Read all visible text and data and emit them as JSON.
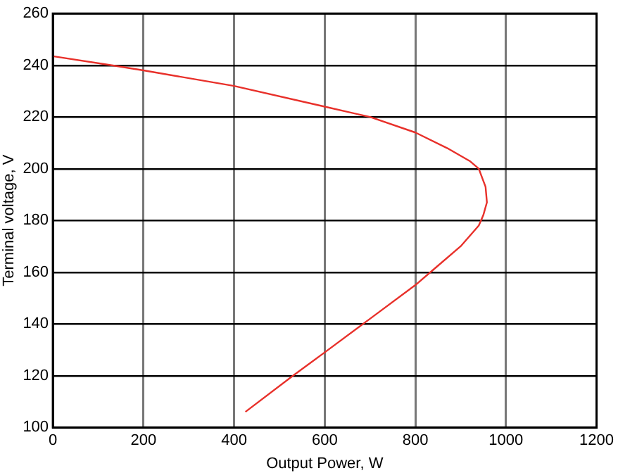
{
  "chart_data": {
    "type": "line",
    "xlabel": "Output Power, W",
    "ylabel": "Terminal voltage, V",
    "series": [
      {
        "color": "#e8302a",
        "x": [
          0,
          130,
          200,
          400,
          600,
          700,
          800,
          870,
          920,
          940,
          955,
          958,
          950,
          940,
          900,
          840,
          800,
          700,
          600,
          530,
          425
        ],
        "values": [
          243.5,
          240,
          238,
          232,
          224,
          220,
          214,
          208,
          203,
          200,
          193,
          187,
          182,
          178,
          170,
          161,
          155,
          142,
          129,
          120,
          106
        ]
      }
    ],
    "xlim": [
      0,
      1200
    ],
    "xticks": [
      0,
      200,
      400,
      600,
      800,
      1000,
      1200
    ],
    "ylim": [
      100,
      260
    ],
    "yticks": [
      100,
      120,
      140,
      160,
      180,
      200,
      220,
      240,
      260
    ],
    "grid": true,
    "legend": false,
    "marker": "none",
    "line_style": "solid"
  }
}
